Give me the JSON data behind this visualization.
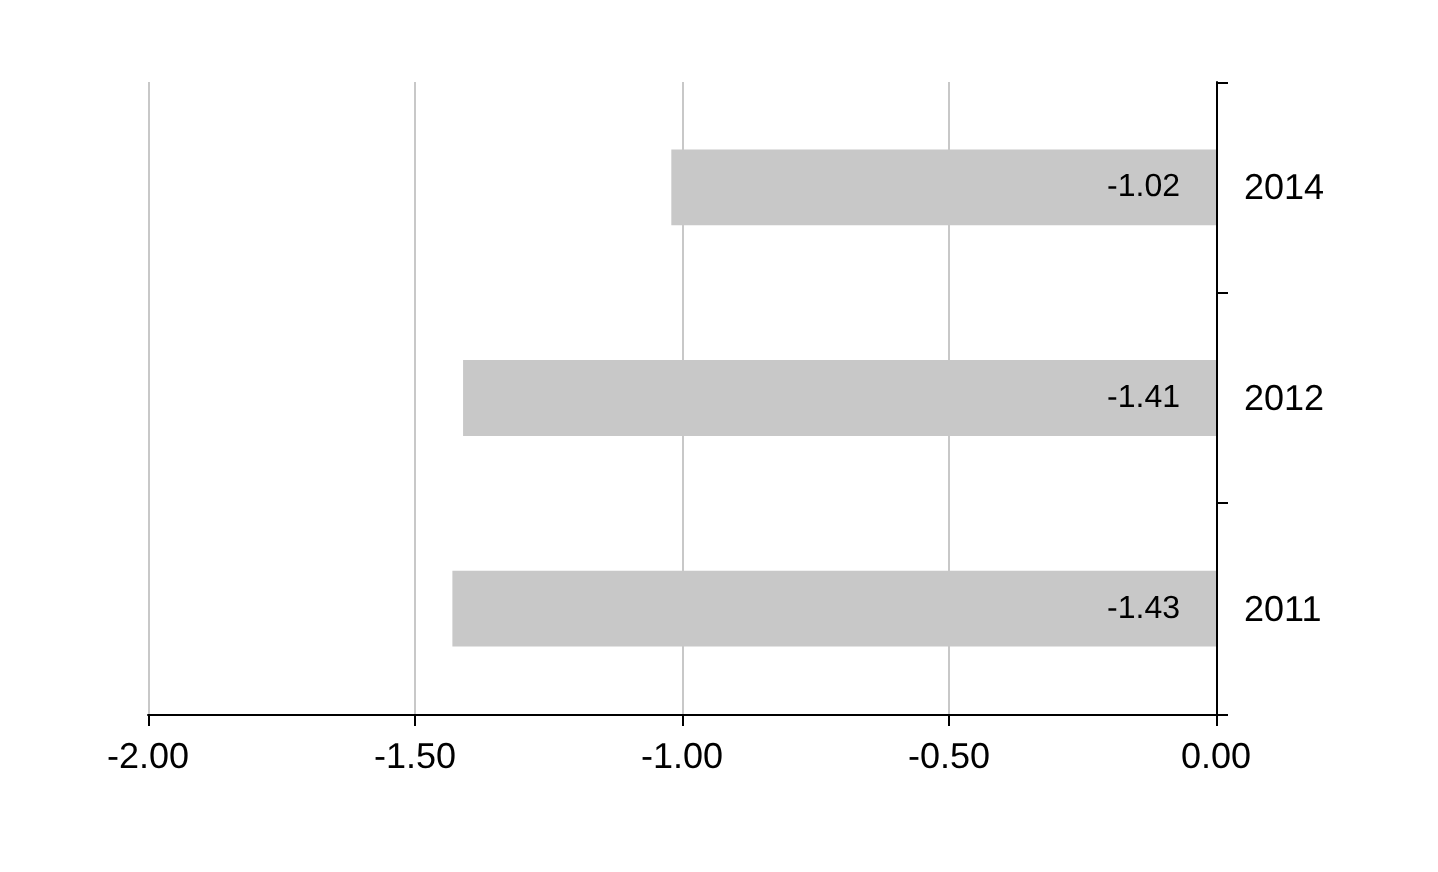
{
  "chart_data": {
    "type": "bar",
    "orientation": "horizontal",
    "categories": [
      "2014",
      "2012",
      "2011"
    ],
    "values": [
      -1.02,
      -1.41,
      -1.43
    ],
    "color": "#c8c8c8",
    "data_labels": true,
    "xlim": [
      -2,
      0
    ],
    "xticks": [
      {
        "value": -2,
        "label": "-2.00"
      },
      {
        "value": -1.5,
        "label": "-1.50"
      },
      {
        "value": -1,
        "label": "-1.00"
      },
      {
        "value": -0.5,
        "label": "-0.50"
      },
      {
        "value": 0,
        "label": "0.00"
      }
    ],
    "grid": "x"
  }
}
